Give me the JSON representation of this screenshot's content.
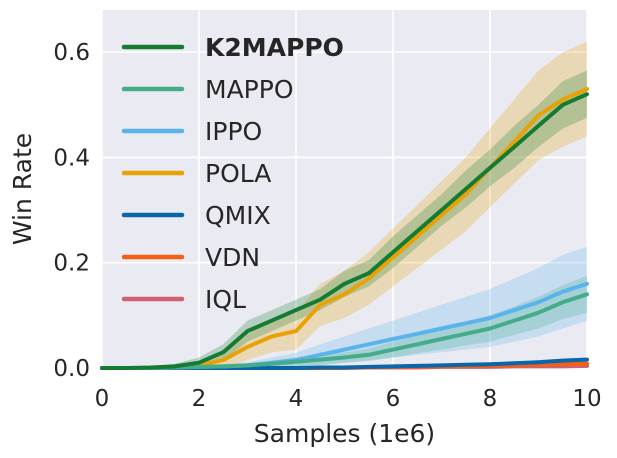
{
  "chart_data": {
    "type": "line",
    "xlabel": "Samples (1e6)",
    "ylabel": "Win Rate",
    "xlim": [
      0,
      10
    ],
    "ylim": [
      0,
      0.68
    ],
    "xticks": [
      "0",
      "2",
      "4",
      "6",
      "8",
      "10"
    ],
    "yticks": [
      "0.0",
      "0.2",
      "0.4",
      "0.6"
    ],
    "grid": true,
    "legend_position": "top-left",
    "x": [
      0,
      0.5,
      1,
      1.5,
      2,
      2.5,
      3,
      3.5,
      4,
      4.5,
      5,
      5.5,
      6,
      6.5,
      7,
      7.5,
      8,
      8.5,
      9,
      9.5,
      10
    ],
    "series": [
      {
        "name": "K2MAPPO",
        "color": "#157a32",
        "bold": true,
        "values": [
          0,
          0,
          0.001,
          0.003,
          0.01,
          0.03,
          0.07,
          0.09,
          0.11,
          0.13,
          0.16,
          0.18,
          0.22,
          0.26,
          0.3,
          0.34,
          0.38,
          0.42,
          0.46,
          0.5,
          0.52
        ],
        "band": [
          0,
          0,
          0.002,
          0.005,
          0.01,
          0.015,
          0.02,
          0.02,
          0.02,
          0.02,
          0.025,
          0.025,
          0.03,
          0.03,
          0.03,
          0.035,
          0.035,
          0.04,
          0.04,
          0.045,
          0.045
        ]
      },
      {
        "name": "MAPPO",
        "color": "#45ab88",
        "values": [
          0,
          0,
          0,
          0.001,
          0.002,
          0.003,
          0.005,
          0.008,
          0.012,
          0.016,
          0.02,
          0.025,
          0.035,
          0.045,
          0.055,
          0.065,
          0.075,
          0.09,
          0.105,
          0.125,
          0.14
        ],
        "band": [
          0,
          0,
          0,
          0.001,
          0.002,
          0.003,
          0.004,
          0.006,
          0.008,
          0.01,
          0.01,
          0.012,
          0.015,
          0.017,
          0.02,
          0.022,
          0.025,
          0.027,
          0.03,
          0.032,
          0.035
        ]
      },
      {
        "name": "IPPO",
        "color": "#5ab4ec",
        "values": [
          0,
          0,
          0,
          0.001,
          0.002,
          0.003,
          0.005,
          0.01,
          0.015,
          0.025,
          0.035,
          0.045,
          0.055,
          0.065,
          0.075,
          0.085,
          0.095,
          0.11,
          0.125,
          0.145,
          0.16
        ],
        "band": [
          0,
          0,
          0,
          0.001,
          0.002,
          0.004,
          0.006,
          0.01,
          0.014,
          0.02,
          0.025,
          0.03,
          0.035,
          0.04,
          0.045,
          0.05,
          0.055,
          0.06,
          0.065,
          0.07,
          0.07
        ]
      },
      {
        "name": "POLA",
        "color": "#e8a205",
        "values": [
          0,
          0,
          0,
          0.002,
          0.005,
          0.015,
          0.04,
          0.06,
          0.07,
          0.12,
          0.14,
          0.17,
          0.21,
          0.25,
          0.29,
          0.33,
          0.38,
          0.43,
          0.48,
          0.51,
          0.53
        ],
        "band": [
          0,
          0,
          0.001,
          0.004,
          0.008,
          0.015,
          0.025,
          0.03,
          0.035,
          0.04,
          0.045,
          0.05,
          0.055,
          0.06,
          0.065,
          0.07,
          0.075,
          0.08,
          0.085,
          0.09,
          0.09
        ]
      },
      {
        "name": "QMIX",
        "color": "#0a66a8",
        "values": [
          0,
          0,
          0,
          0,
          0,
          0,
          0,
          0,
          0,
          0.001,
          0.001,
          0.002,
          0.003,
          0.004,
          0.005,
          0.006,
          0.007,
          0.009,
          0.011,
          0.014,
          0.016
        ],
        "band": [
          0,
          0,
          0,
          0,
          0,
          0,
          0,
          0,
          0,
          0.001,
          0.001,
          0.001,
          0.002,
          0.002,
          0.002,
          0.003,
          0.003,
          0.003,
          0.004,
          0.004,
          0.004
        ]
      },
      {
        "name": "VDN",
        "color": "#f45f16",
        "values": [
          0,
          0,
          0,
          0,
          0,
          0,
          0,
          0,
          0,
          0,
          0.001,
          0.001,
          0.002,
          0.002,
          0.003,
          0.003,
          0.004,
          0.005,
          0.006,
          0.007,
          0.008
        ],
        "band": [
          0,
          0,
          0,
          0,
          0,
          0,
          0,
          0,
          0,
          0,
          0.001,
          0.001,
          0.001,
          0.001,
          0.002,
          0.002,
          0.002,
          0.002,
          0.003,
          0.003,
          0.003
        ]
      },
      {
        "name": "IQL",
        "color": "#d0606e",
        "values": [
          0,
          0,
          0,
          0,
          0,
          0,
          0,
          0,
          0,
          0,
          0,
          0.001,
          0.001,
          0.001,
          0.002,
          0.002,
          0.002,
          0.003,
          0.003,
          0.003,
          0.004
        ],
        "band": [
          0,
          0,
          0,
          0,
          0,
          0,
          0,
          0,
          0,
          0,
          0,
          0.001,
          0.001,
          0.001,
          0.001,
          0.001,
          0.001,
          0.002,
          0.002,
          0.002,
          0.002
        ]
      }
    ]
  }
}
